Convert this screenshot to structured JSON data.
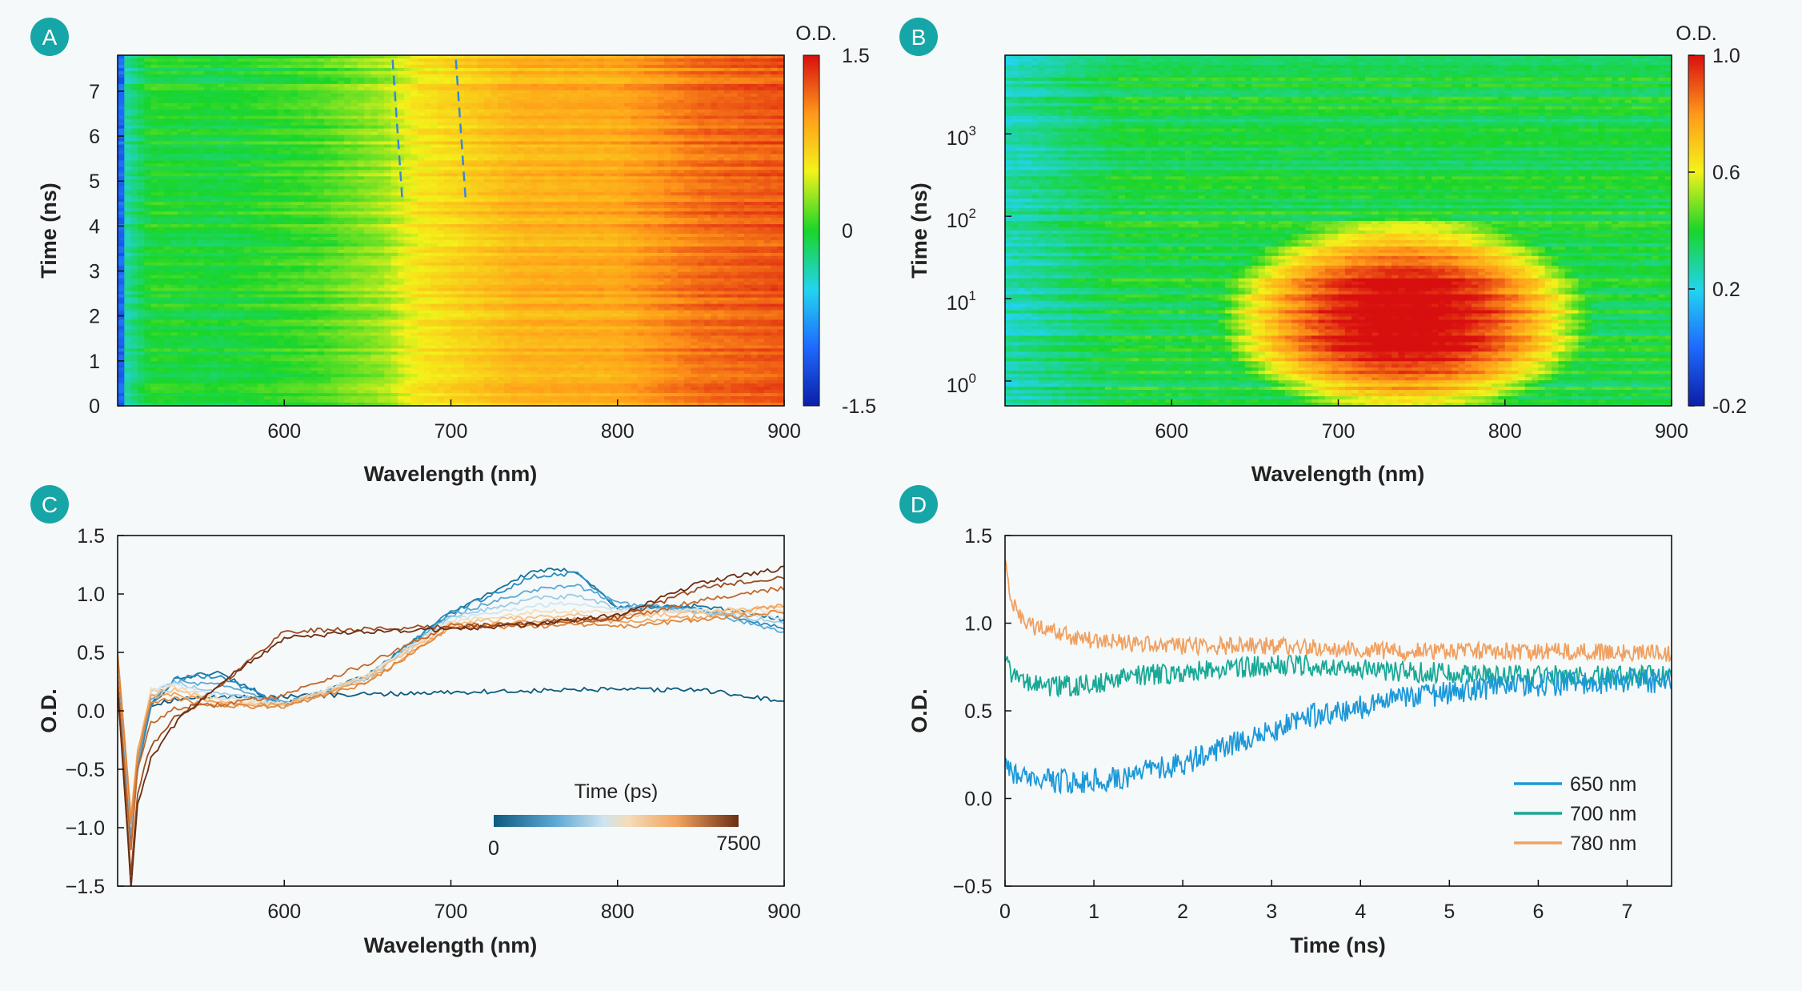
{
  "chart_data": [
    {
      "panel": "A",
      "type": "heatmap",
      "xlabel": "Wavelength (nm)",
      "ylabel": "Time (ns)",
      "xlim": [
        500,
        900
      ],
      "ylim": [
        0,
        7.8
      ],
      "xticks": [
        "600",
        "700",
        "800",
        "900"
      ],
      "yticks": [
        "0",
        "1",
        "2",
        "3",
        "4",
        "5",
        "6",
        "7"
      ],
      "colorbar": {
        "label": "O.D.",
        "ticks": [
          "1.5",
          "0",
          "-1.5"
        ],
        "range": [
          -1.5,
          1.5
        ]
      },
      "colormap": [
        "#0b1ea8",
        "#1f6bff",
        "#22d4f0",
        "#19d52a",
        "#f4f21a",
        "#ff9a1a",
        "#d80f0f"
      ],
      "spectral_profile": {
        "wavelength": [
          500,
          506,
          520,
          560,
          620,
          660,
          680,
          700,
          740,
          800,
          850,
          900
        ],
        "od": [
          -1.4,
          -0.3,
          0.0,
          -0.05,
          0.1,
          0.3,
          0.55,
          0.65,
          0.85,
          0.9,
          1.15,
          1.25
        ]
      },
      "guide_lines": [
        {
          "wavelength": [
            665,
            671
          ],
          "time": [
            7.7,
            4.5
          ]
        },
        {
          "wavelength": [
            703,
            709
          ],
          "time": [
            7.7,
            4.5
          ]
        }
      ]
    },
    {
      "panel": "B",
      "type": "heatmap",
      "xlabel": "Wavelength (nm)",
      "ylabel": "Time (ns)",
      "xlim": [
        500,
        900
      ],
      "yscale": "log",
      "ylim": [
        0.5,
        9000
      ],
      "xticks": [
        "600",
        "700",
        "800",
        "900"
      ],
      "yticks": [
        {
          "base": "10",
          "exp": "0"
        },
        {
          "base": "10",
          "exp": "1"
        },
        {
          "base": "10",
          "exp": "2"
        },
        {
          "base": "10",
          "exp": "3"
        }
      ],
      "colorbar": {
        "label": "O.D.",
        "ticks": [
          "1.0",
          "0.6",
          "0.2",
          "-0.2"
        ],
        "range": [
          -0.2,
          1.0
        ]
      },
      "colormap": [
        "#0b1ea8",
        "#1f6bff",
        "#22d4f0",
        "#19d52a",
        "#f4f21a",
        "#ff9a1a",
        "#d80f0f"
      ],
      "hotspot": {
        "center_wavelength": 715,
        "wavelength_range": [
          650,
          830
        ],
        "time_range": [
          0.6,
          60
        ],
        "peak_od": 0.92
      }
    },
    {
      "panel": "C",
      "type": "line",
      "xlabel": "Wavelength (nm)",
      "ylabel": "O.D.",
      "xlim": [
        500,
        900
      ],
      "ylim": [
        -1.5,
        1.5
      ],
      "xticks": [
        "600",
        "700",
        "800",
        "900"
      ],
      "yticks": [
        "1.5",
        "1.0",
        "0.5",
        "0.0",
        "−0.5",
        "−1.0",
        "−1.5"
      ],
      "legend": {
        "title": "Time (ps)",
        "min_label": "0",
        "max_label": "7500",
        "placement": "lower-right"
      },
      "x": [
        500,
        508,
        512,
        520,
        535,
        560,
        600,
        650,
        700,
        750,
        775,
        800,
        850,
        900
      ],
      "series": [
        {
          "color": "#0d5b7f",
          "values": [
            0.2,
            -1.0,
            -0.5,
            0.05,
            0.1,
            0.12,
            0.12,
            0.14,
            0.16,
            0.17,
            0.18,
            0.18,
            0.18,
            0.08
          ]
        },
        {
          "color": "#17719b",
          "values": [
            0.5,
            -1.1,
            -0.5,
            0.05,
            0.28,
            0.33,
            0.05,
            0.3,
            0.84,
            1.2,
            1.2,
            0.88,
            0.9,
            0.78
          ]
        },
        {
          "color": "#2a8cc0",
          "values": [
            0.5,
            -1.1,
            -0.5,
            0.05,
            0.28,
            0.3,
            0.05,
            0.3,
            0.84,
            1.15,
            1.18,
            0.9,
            0.88,
            0.7
          ]
        },
        {
          "color": "#5ba8d4",
          "values": [
            0.5,
            -1.05,
            -0.45,
            0.1,
            0.25,
            0.22,
            0.06,
            0.28,
            0.82,
            1.04,
            1.08,
            0.92,
            0.85,
            0.68
          ]
        },
        {
          "color": "#9ccbe6",
          "values": [
            0.5,
            -1.0,
            -0.4,
            0.15,
            0.24,
            0.16,
            0.06,
            0.28,
            0.8,
            0.96,
            0.98,
            0.88,
            0.85,
            0.75
          ]
        },
        {
          "color": "#cfe4ef",
          "values": [
            0.5,
            -0.95,
            -0.4,
            0.18,
            0.22,
            0.12,
            0.06,
            0.3,
            0.78,
            0.9,
            0.92,
            0.86,
            0.86,
            0.8
          ]
        },
        {
          "color": "#f5dcb8",
          "values": [
            0.5,
            -0.9,
            -0.4,
            0.18,
            0.2,
            0.1,
            0.06,
            0.3,
            0.76,
            0.85,
            0.86,
            0.84,
            0.86,
            0.85
          ]
        },
        {
          "color": "#f5c08a",
          "values": [
            0.5,
            -0.9,
            -0.35,
            0.15,
            0.18,
            0.08,
            0.05,
            0.28,
            0.75,
            0.8,
            0.82,
            0.8,
            0.84,
            0.9
          ]
        },
        {
          "color": "#f0a35e",
          "values": [
            0.5,
            -0.9,
            -0.35,
            0.12,
            0.14,
            0.06,
            0.05,
            0.26,
            0.72,
            0.76,
            0.78,
            0.76,
            0.8,
            0.9
          ]
        },
        {
          "color": "#e0853a",
          "values": [
            0.5,
            -0.95,
            -0.4,
            0.08,
            0.1,
            0.04,
            0.04,
            0.24,
            0.72,
            0.72,
            0.74,
            0.72,
            0.78,
            0.85
          ]
        },
        {
          "color": "#c4682a",
          "values": [
            0.3,
            -1.2,
            -0.5,
            -0.1,
            0.02,
            0.05,
            0.14,
            0.4,
            0.73,
            0.74,
            0.76,
            0.78,
            0.95,
            1.05
          ]
        },
        {
          "color": "#9c4a1f",
          "values": [
            0.2,
            -1.4,
            -0.7,
            -0.3,
            -0.05,
            0.2,
            0.68,
            0.7,
            0.72,
            0.75,
            0.78,
            0.8,
            1.05,
            1.15
          ]
        },
        {
          "color": "#6b2e14",
          "values": [
            0.2,
            -1.5,
            -0.8,
            -0.4,
            -0.1,
            0.22,
            0.62,
            0.68,
            0.7,
            0.74,
            0.78,
            0.82,
            1.1,
            1.22
          ]
        }
      ]
    },
    {
      "panel": "D",
      "type": "line",
      "xlabel": "Time (ns)",
      "ylabel": "O.D.",
      "xlim": [
        0,
        7.5
      ],
      "ylim": [
        -0.5,
        1.5
      ],
      "xticks": [
        "0",
        "1",
        "2",
        "3",
        "4",
        "5",
        "6",
        "7"
      ],
      "yticks": [
        "1.5",
        "1.0",
        "0.5",
        "0.0",
        "−0.5"
      ],
      "legend_placement": "lower-right",
      "x": [
        0,
        0.05,
        0.2,
        0.5,
        1,
        1.5,
        2,
        2.5,
        3,
        3.5,
        4,
        4.5,
        5,
        5.5,
        6,
        6.5,
        7,
        7.5
      ],
      "series": [
        {
          "name": "650 nm",
          "color": "#1b98d8",
          "noise": 0.07,
          "values": [
            0.25,
            0.15,
            0.11,
            0.1,
            0.1,
            0.14,
            0.2,
            0.3,
            0.38,
            0.48,
            0.52,
            0.58,
            0.6,
            0.64,
            0.65,
            0.66,
            0.67,
            0.67
          ]
        },
        {
          "name": "700 nm",
          "color": "#18a896",
          "noise": 0.06,
          "values": [
            0.8,
            0.72,
            0.66,
            0.64,
            0.65,
            0.7,
            0.72,
            0.74,
            0.76,
            0.76,
            0.74,
            0.72,
            0.72,
            0.71,
            0.7,
            0.7,
            0.7,
            0.7
          ]
        },
        {
          "name": "780 nm",
          "color": "#f0a060",
          "noise": 0.05,
          "values": [
            1.38,
            1.15,
            1.0,
            0.95,
            0.9,
            0.88,
            0.87,
            0.87,
            0.87,
            0.86,
            0.85,
            0.84,
            0.84,
            0.84,
            0.84,
            0.84,
            0.83,
            0.83
          ]
        }
      ]
    }
  ]
}
